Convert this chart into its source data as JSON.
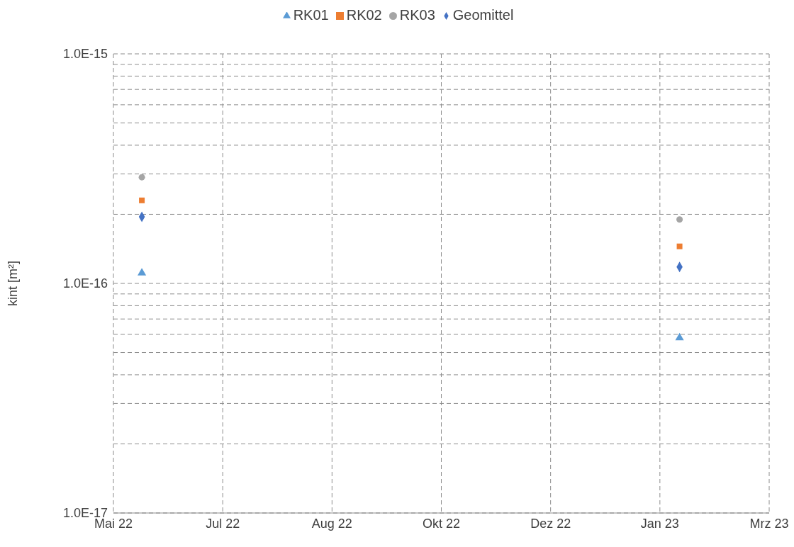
{
  "chart_data": {
    "type": "scatter",
    "ylabel": "kint [m²]",
    "x": [
      "2022-05-28",
      "2023-01-29"
    ],
    "series": [
      {
        "name": "RK01",
        "color": "#5b9bd5",
        "marker": "triangle",
        "values": [
          1.11e-16,
          5.8e-17
        ]
      },
      {
        "name": "RK02",
        "color": "#ed7d31",
        "marker": "square",
        "values": [
          2.3e-16,
          1.45e-16
        ]
      },
      {
        "name": "RK03",
        "color": "#a5a5a5",
        "marker": "circle",
        "values": [
          2.9e-16,
          1.9e-16
        ]
      },
      {
        "name": "Geomittel",
        "color": "#4472c4",
        "marker": "diamond",
        "values": [
          1.95e-16,
          1.18e-16
        ]
      }
    ],
    "log": "y",
    "ylim": [
      1e-17,
      1e-15
    ],
    "yticks": [
      {
        "value": 1e-17,
        "label": "1.0E-17"
      },
      {
        "value": 1e-16,
        "label": "1.0E-16"
      },
      {
        "value": 1e-15,
        "label": "1.0E-15"
      }
    ],
    "xlim": [
      "2022-05-15",
      "2023-03-11"
    ],
    "xticks": [
      {
        "value": "2022-05-15",
        "label": "Mai 22"
      },
      {
        "value": "2022-07-04",
        "label": "Jul 22"
      },
      {
        "value": "2022-08-23",
        "label": "Aug 22"
      },
      {
        "value": "2022-10-12",
        "label": "Okt 22"
      },
      {
        "value": "2022-12-01",
        "label": "Dez 22"
      },
      {
        "value": "2023-01-20",
        "label": "Jan 23"
      },
      {
        "value": "2023-03-11",
        "label": "Mrz 23"
      }
    ],
    "grid": true,
    "legend": "top"
  }
}
